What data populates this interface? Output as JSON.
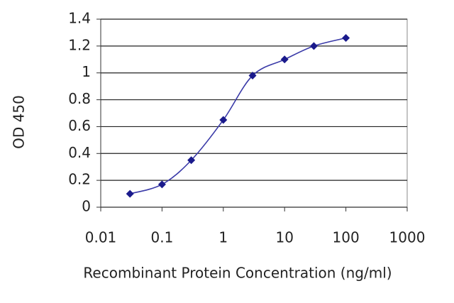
{
  "chart_data": {
    "type": "line",
    "xlabel": "Recombinant Protein Concentration (ng/ml)",
    "ylabel": "OD 450",
    "x": [
      0.03,
      0.1,
      0.3,
      1,
      3,
      10,
      30,
      100
    ],
    "series": [
      {
        "color": "#1a1a8c",
        "values": [
          0.1,
          0.17,
          0.35,
          0.65,
          0.98,
          1.1,
          1.2,
          1.26
        ]
      }
    ],
    "xlog": true,
    "xlim": [
      0.01,
      1000
    ],
    "xticks": [
      0.01,
      0.1,
      1,
      10,
      100,
      1000
    ],
    "ylim": [
      0,
      1.4
    ],
    "yticks": [
      0,
      0.2,
      0.4,
      0.6,
      0.8,
      1,
      1.2,
      1.4
    ],
    "grid": true
  }
}
